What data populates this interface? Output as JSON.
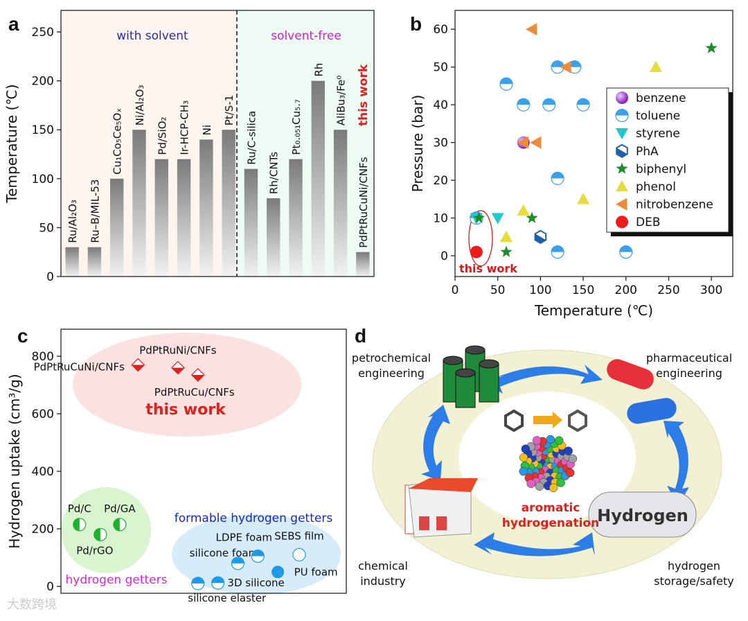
{
  "chart_data": [
    {
      "type": "bar",
      "panel": "a",
      "ylabel": "Temperature (℃)",
      "categories": [
        "Ru/Al₂O₃",
        "Ru–B/MIL-53",
        "Cu₁Co₅Ce₅Oₓ",
        "Ni/Al₂O₃",
        "Pd/SiO₂",
        "Ir-HCP-CH₃",
        "Ni",
        "Pt/S-1",
        "Ru/C-silica",
        "Rh/CNTs",
        "Pt₀.₀₅₁Cu₅.₇",
        "Rh",
        "AliBu₃/Fe⁰",
        "PdPtRuCuNi/CNFs"
      ],
      "values": [
        30,
        30,
        100,
        150,
        120,
        120,
        140,
        150,
        110,
        80,
        120,
        200,
        150,
        25
      ],
      "color": "#8a8a8a",
      "ylim": [
        0,
        272
      ],
      "yticks": [
        0,
        50,
        100,
        150,
        200,
        250
      ],
      "annotations": [
        {
          "text": "with solvent",
          "color": "#2a2ab4"
        },
        {
          "text": "solvent-free",
          "color": "#d020d0"
        },
        {
          "text": "this work",
          "color": "#e0201c"
        }
      ]
    },
    {
      "type": "scatter",
      "panel": "b",
      "xlabel": "Temperature (℃)",
      "ylabel": "Pressure (bar)",
      "xlim": [
        0,
        325
      ],
      "ylim": [
        -5.5,
        65
      ],
      "xticks": [
        0,
        50,
        100,
        150,
        200,
        250,
        300
      ],
      "yticks": [
        0,
        10,
        20,
        30,
        40,
        50,
        60
      ],
      "legend": "upper right",
      "series": [
        {
          "name": "benzene",
          "color": "#9b30c8",
          "marker": "sphere",
          "x": [
            80
          ],
          "y": [
            30
          ]
        },
        {
          "name": "toluene",
          "color": "#3aa0e8",
          "marker": "half",
          "x": [
            60,
            120,
            140,
            80,
            110,
            150,
            120,
            120,
            200,
            25
          ],
          "y": [
            45.5,
            50,
            50,
            40,
            40,
            40,
            20.5,
            1,
            1,
            10
          ]
        },
        {
          "name": "styrene",
          "color": "#20c8d0",
          "marker": "tri-down",
          "x": [
            50,
            25
          ],
          "y": [
            10,
            10
          ]
        },
        {
          "name": "PhA",
          "color": "#2060a8",
          "marker": "hexagon",
          "x": [
            100
          ],
          "y": [
            5
          ]
        },
        {
          "name": "biphenyl",
          "color": "#1e8c2a",
          "marker": "star",
          "x": [
            300,
            90,
            60,
            28
          ],
          "y": [
            55,
            10,
            1,
            10
          ]
        },
        {
          "name": "phenol",
          "color": "#e6dc3c",
          "marker": "tri-up",
          "x": [
            235,
            150,
            80,
            60
          ],
          "y": [
            50,
            15,
            12,
            5
          ]
        },
        {
          "name": "nitrobenzene",
          "color": "#ee8a3c",
          "marker": "tri-left",
          "x": [
            90,
            130,
            95,
            80
          ],
          "y": [
            60,
            50,
            30,
            30
          ]
        },
        {
          "name": "DEB",
          "color": "#ee1c1c",
          "marker": "circle",
          "x": [
            25
          ],
          "y": [
            1
          ]
        }
      ],
      "annotations": [
        {
          "text": "this work",
          "color": "#d41c1c"
        }
      ]
    },
    {
      "type": "scatter",
      "panel": "c",
      "ylabel": "Hydrogen uptake (cm³/g)",
      "xlim": [
        0,
        100
      ],
      "ylim": [
        -24,
        894
      ],
      "yticks": [
        0,
        200,
        400,
        600,
        800
      ],
      "series": [
        {
          "name": "this work",
          "color": "#e0201c",
          "marker": "diamond-half",
          "labels": [
            "PdPtRuCuNi/CNFs",
            "PdPtRuNi/CNFs",
            "PdPtRuCu/CNFs"
          ],
          "x": [
            27,
            41,
            48
          ],
          "y": [
            770,
            760,
            735
          ]
        },
        {
          "name": "hydrogen getters",
          "color": "#20b030",
          "marker": "half-left",
          "labels": [
            "Pd/C",
            "Pd/GA",
            "Pd/rGO"
          ],
          "x": [
            6.5,
            20.6,
            13.8
          ],
          "y": [
            215,
            215,
            180
          ]
        },
        {
          "name": "formable hydrogen getters",
          "color": "#1e9ae8",
          "marker": "half",
          "labels": [
            "silicone foam",
            "LDPE foam",
            "SEBS film",
            "PU foam",
            "3D silicone",
            "silicone elaster"
          ],
          "x": [
            62,
            69,
            83.5,
            76,
            55,
            48
          ],
          "y": [
            80,
            105,
            110,
            50,
            12,
            10
          ]
        }
      ]
    }
  ],
  "diagram": {
    "panel": "d",
    "nodes": [
      {
        "label": "petrochemical engineering"
      },
      {
        "label": "pharmaceutical engineering"
      },
      {
        "label": "chemical industry"
      },
      {
        "label": "hydrogen storage/safety"
      },
      {
        "label": "aromatic hydrogenation"
      },
      {
        "label": "Hydrogen"
      }
    ]
  },
  "watermark": "大数跨境"
}
